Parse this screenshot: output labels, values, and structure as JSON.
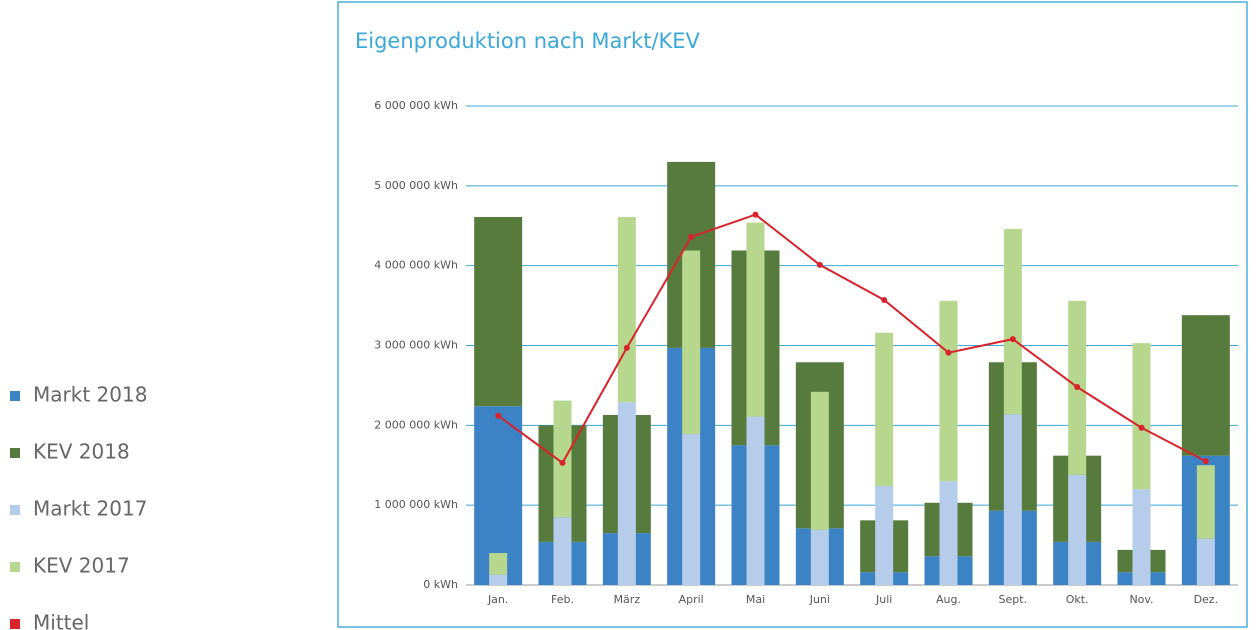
{
  "chart_data": {
    "type": "bar",
    "title": "Eigenproduktion nach Markt/KEV",
    "categories": [
      "Jan.",
      "Feb.",
      "März",
      "April",
      "Mai",
      "Juni",
      "Juli",
      "Aug.",
      "Sept.",
      "Okt.",
      "Nov.",
      "Dez."
    ],
    "series": [
      {
        "name": "Markt 2018",
        "color": "#3b83c5",
        "stack": 1,
        "values": [
          2240000,
          540000,
          650000,
          2970000,
          1750000,
          710000,
          160000,
          360000,
          930000,
          540000,
          160000,
          1620000
        ]
      },
      {
        "name": "KEV 2018",
        "color": "#567b3d",
        "stack": 1,
        "values": [
          2370000,
          1460000,
          1480000,
          2330000,
          2440000,
          2080000,
          650000,
          670000,
          1860000,
          1080000,
          280000,
          1760000
        ]
      },
      {
        "name": "Markt 2017",
        "color": "#b5cdea",
        "stack": 2,
        "values": [
          130000,
          850000,
          2290000,
          1890000,
          2110000,
          690000,
          1240000,
          1300000,
          2140000,
          1380000,
          1200000,
          580000
        ]
      },
      {
        "name": "KEV 2017",
        "color": "#b6d78d",
        "stack": 2,
        "values": [
          270000,
          1460000,
          2320000,
          2300000,
          2430000,
          1730000,
          1920000,
          2260000,
          2320000,
          2180000,
          1830000,
          920000
        ]
      },
      {
        "name": "Mittel",
        "color": "#d9232b",
        "type": "line",
        "values": [
          2120000,
          1530000,
          2970000,
          4360000,
          4640000,
          4010000,
          3570000,
          2910000,
          3080000,
          2480000,
          1970000,
          1550000
        ]
      }
    ],
    "ylim": [
      0,
      6000000
    ],
    "yticks": [
      {
        "value": 0,
        "label": "0 kWh"
      },
      {
        "value": 1000000,
        "label": "1 000 000 kWh"
      },
      {
        "value": 2000000,
        "label": "2 000 000 kWh"
      },
      {
        "value": 3000000,
        "label": "3 000 000 kWh"
      },
      {
        "value": 4000000,
        "label": "4 000 000 kWh"
      },
      {
        "value": 5000000,
        "label": "5 000 000 kWh"
      },
      {
        "value": 6000000,
        "label": "6 000 000 kWh"
      }
    ],
    "grid": true,
    "legend": "left"
  }
}
